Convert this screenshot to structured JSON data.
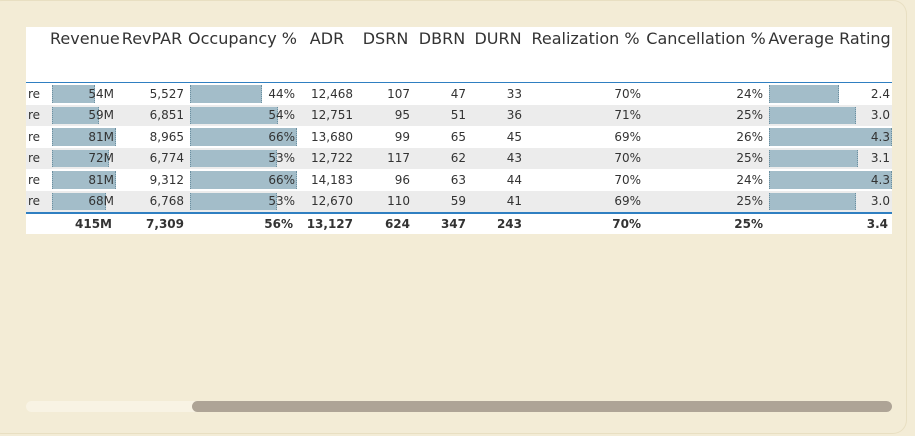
{
  "columns": [
    "Revenue",
    "RevPAR",
    "Occupancy %",
    "ADR",
    "DSRN",
    "DBRN",
    "DURN",
    "Realization %",
    "Cancellation %",
    "Average Rating"
  ],
  "rows": [
    {
      "name": "re",
      "revenue": "54M",
      "revenue_frac": 0.66,
      "revpar": "5,527",
      "occupancy": "44%",
      "occupancy_frac": 0.67,
      "adr": "12,468",
      "dsrn": "107",
      "dbrn": "47",
      "durn": "33",
      "realization": "70%",
      "cancellation": "24%",
      "rating": "2.4",
      "rating_frac": 0.56
    },
    {
      "name": "re",
      "revenue": "59M",
      "revenue_frac": 0.73,
      "revpar": "6,851",
      "occupancy": "54%",
      "occupancy_frac": 0.82,
      "adr": "12,751",
      "dsrn": "95",
      "dbrn": "51",
      "durn": "36",
      "realization": "71%",
      "cancellation": "25%",
      "rating": "3.0",
      "rating_frac": 0.7
    },
    {
      "name": "re",
      "revenue": "81M",
      "revenue_frac": 1.0,
      "revpar": "8,965",
      "occupancy": "66%",
      "occupancy_frac": 1.0,
      "adr": "13,680",
      "dsrn": "99",
      "dbrn": "65",
      "durn": "45",
      "realization": "69%",
      "cancellation": "26%",
      "rating": "4.3",
      "rating_frac": 1.0
    },
    {
      "name": "re",
      "revenue": "72M",
      "revenue_frac": 0.89,
      "revpar": "6,774",
      "occupancy": "53%",
      "occupancy_frac": 0.81,
      "adr": "12,722",
      "dsrn": "117",
      "dbrn": "62",
      "durn": "43",
      "realization": "70%",
      "cancellation": "25%",
      "rating": "3.1",
      "rating_frac": 0.72
    },
    {
      "name": "re",
      "revenue": "81M",
      "revenue_frac": 1.0,
      "revpar": "9,312",
      "occupancy": "66%",
      "occupancy_frac": 1.0,
      "adr": "14,183",
      "dsrn": "96",
      "dbrn": "63",
      "durn": "44",
      "realization": "70%",
      "cancellation": "24%",
      "rating": "4.3",
      "rating_frac": 1.0
    },
    {
      "name": "re",
      "revenue": "68M",
      "revenue_frac": 0.84,
      "revpar": "6,768",
      "occupancy": "53%",
      "occupancy_frac": 0.81,
      "adr": "12,670",
      "dsrn": "110",
      "dbrn": "59",
      "durn": "41",
      "realization": "69%",
      "cancellation": "25%",
      "rating": "3.0",
      "rating_frac": 0.7
    }
  ],
  "totals": {
    "revenue": "415M",
    "revpar": "7,309",
    "occupancy": "56%",
    "adr": "13,127",
    "dsrn": "624",
    "dbrn": "347",
    "durn": "243",
    "realization": "70%",
    "cancellation": "25%",
    "rating": "3.4"
  },
  "colors": {
    "bar": "#a3bdc9",
    "accent": "#2f7fc1",
    "background": "#f3ecd6"
  },
  "scrollbar": {
    "horizontal_position": 0.18
  }
}
